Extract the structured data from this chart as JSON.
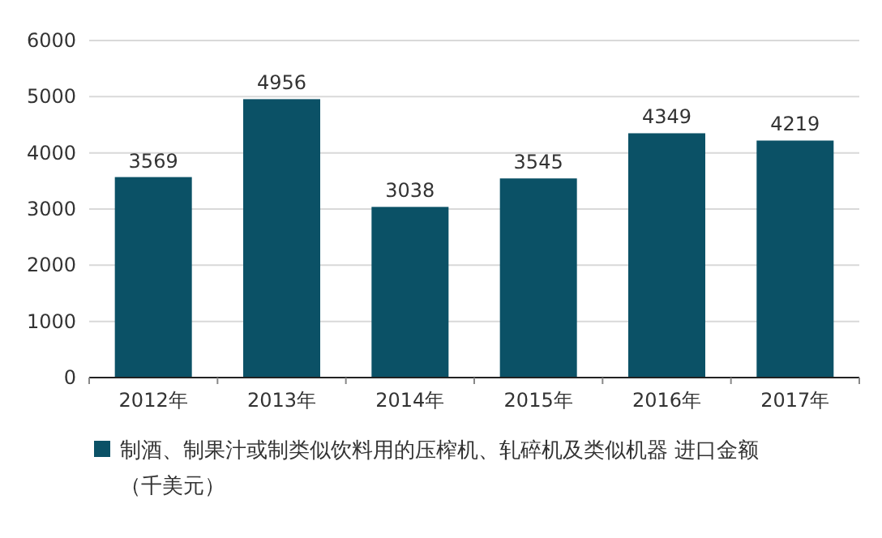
{
  "chart_data": {
    "type": "bar",
    "categories": [
      "2012年",
      "2013年",
      "2014年",
      "2015年",
      "2016年",
      "2017年"
    ],
    "series": [
      {
        "name": "制酒、制果汁或制类似饮料用的压榨机、轧碎机及类似机器 进口金额（千美元）",
        "color": "#0b5166",
        "values": [
          3569,
          4956,
          3038,
          3545,
          4349,
          4219
        ]
      }
    ],
    "ylim": [
      0,
      6000
    ],
    "yticks": [
      0,
      1000,
      2000,
      3000,
      4000,
      5000,
      6000
    ],
    "data_labels": true,
    "legend": "bottom",
    "grid": "y"
  }
}
